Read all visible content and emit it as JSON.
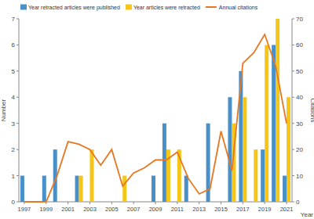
{
  "chart_data": {
    "type": "bar",
    "categories": [
      "1997",
      null,
      "1999",
      null,
      "2001",
      null,
      "2003",
      null,
      "2005",
      null,
      "2007",
      null,
      "2009",
      null,
      "2011",
      null,
      "2013",
      null,
      "2015",
      null,
      "2017",
      null,
      "2019",
      null,
      "2021"
    ],
    "series": [
      {
        "name": "Year retracted articles were published",
        "color": "#4a90c8",
        "type": "bar",
        "values": [
          1,
          0,
          1,
          2,
          0,
          1,
          0,
          0,
          0,
          0,
          0,
          0,
          1,
          3,
          0,
          1,
          0,
          3,
          0,
          4,
          5,
          0,
          2,
          6,
          1
        ]
      },
      {
        "name": "Year articles were retracted",
        "color": "#f5c518",
        "type": "bar",
        "values": [
          0,
          0,
          0,
          0,
          0,
          1,
          2,
          0,
          0,
          1,
          0,
          0,
          0,
          2,
          2,
          0,
          0,
          0,
          0,
          3,
          4,
          2,
          6,
          7,
          4
        ]
      },
      {
        "name": "Annual citations",
        "color": "#e87722",
        "type": "line",
        "axis": "y2",
        "values": [
          0,
          0,
          0,
          10,
          23,
          22,
          20,
          14,
          20,
          6,
          11,
          13,
          16,
          16,
          19,
          9,
          3,
          5,
          27,
          12,
          53,
          57,
          64,
          52,
          30
        ]
      }
    ],
    "x_label": "Year",
    "y_label": "Number",
    "y2_label": "Citations",
    "ylim": [
      0,
      7
    ],
    "yticks": [
      0,
      1,
      2,
      3,
      4,
      5,
      6,
      7
    ],
    "y2lim": [
      0,
      70
    ],
    "y2ticks": [
      0,
      10,
      20,
      30,
      40,
      50,
      60,
      70
    ],
    "grid": false,
    "legend": "top"
  }
}
